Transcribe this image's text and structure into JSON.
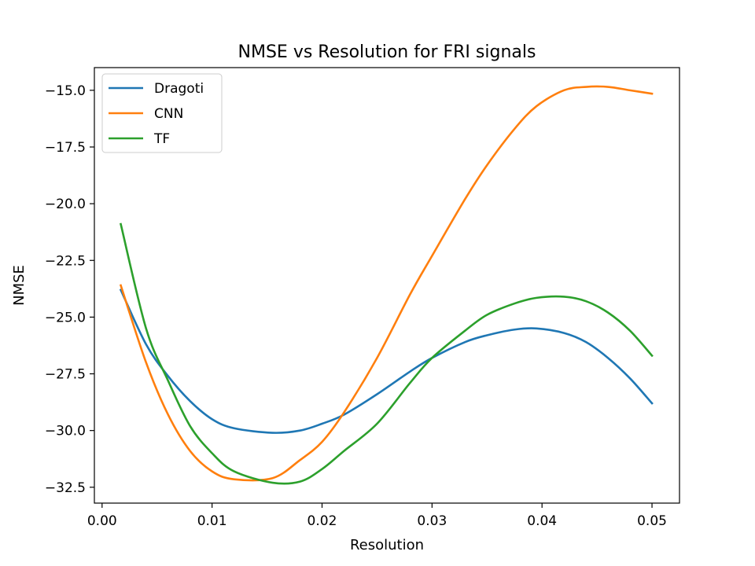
{
  "chart_data": {
    "type": "line",
    "title": "NMSE vs Resolution for FRI signals",
    "xlabel": "Resolution",
    "ylabel": "NMSE",
    "xlim": [
      -0.0007,
      0.0525
    ],
    "ylim": [
      -33.2,
      -14.0
    ],
    "xticks": [
      0.0,
      0.01,
      0.02,
      0.03,
      0.04,
      0.05
    ],
    "xtick_labels": [
      "0.00",
      "0.01",
      "0.02",
      "0.03",
      "0.04",
      "0.05"
    ],
    "yticks": [
      -32.5,
      -30.0,
      -27.5,
      -25.0,
      -22.5,
      -20.0,
      -17.5,
      -15.0
    ],
    "ytick_labels": [
      "−32.5",
      "−30.0",
      "−27.5",
      "−25.0",
      "−22.5",
      "−20.0",
      "−17.5",
      "−15.0"
    ],
    "grid": false,
    "legend_position": "upper-left",
    "x": [
      0.0017,
      0.004,
      0.006,
      0.008,
      0.01,
      0.012,
      0.0155,
      0.018,
      0.02,
      0.022,
      0.025,
      0.028,
      0.03,
      0.033,
      0.035,
      0.0375,
      0.0395,
      0.042,
      0.044,
      0.046,
      0.048,
      0.05
    ],
    "series": [
      {
        "name": "Dragoti",
        "color": "#1f77b4",
        "values": [
          -23.8,
          -26.2,
          -27.6,
          -28.7,
          -29.5,
          -29.9,
          -30.1,
          -30.0,
          -29.7,
          -29.3,
          -28.4,
          -27.4,
          -26.8,
          -26.1,
          -25.8,
          -25.55,
          -25.5,
          -25.7,
          -26.1,
          -26.8,
          -27.7,
          -28.8
        ]
      },
      {
        "name": "CNN",
        "color": "#ff7f0e",
        "values": [
          -23.6,
          -27.0,
          -29.3,
          -30.9,
          -31.8,
          -32.15,
          -32.1,
          -31.3,
          -30.5,
          -29.2,
          -26.8,
          -24.0,
          -22.3,
          -19.8,
          -18.3,
          -16.7,
          -15.7,
          -15.0,
          -14.85,
          -14.85,
          -15.0,
          -15.15
        ]
      },
      {
        "name": "TF",
        "color": "#2ca02c",
        "values": [
          -20.9,
          -25.5,
          -27.8,
          -29.8,
          -31.0,
          -31.8,
          -32.3,
          -32.25,
          -31.7,
          -30.9,
          -29.7,
          -27.9,
          -26.8,
          -25.6,
          -24.9,
          -24.4,
          -24.15,
          -24.1,
          -24.3,
          -24.8,
          -25.6,
          -26.7
        ]
      }
    ]
  }
}
